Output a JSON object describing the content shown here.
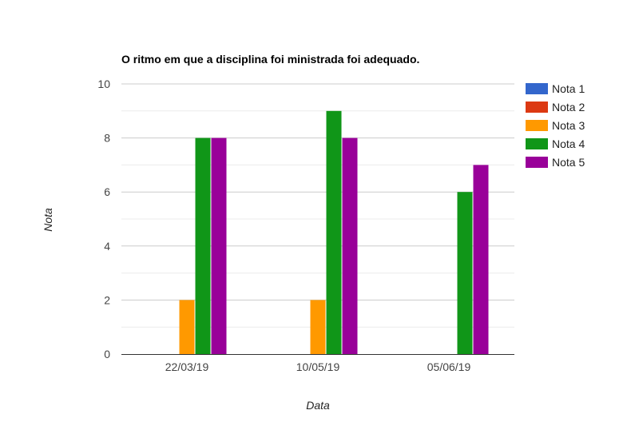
{
  "chart_data": {
    "type": "bar",
    "title": "O ritmo em que a disciplina foi ministrada foi adequado.",
    "xlabel": "Data",
    "ylabel": "Nota",
    "categories": [
      "22/03/19",
      "10/05/19",
      "05/06/19"
    ],
    "ylim": [
      0,
      10
    ],
    "yticks": [
      0,
      2,
      4,
      6,
      8,
      10
    ],
    "grid": true,
    "legend_position": "right",
    "series": [
      {
        "name": "Nota 1",
        "color": "#3366cc",
        "values": [
          0,
          0,
          0
        ]
      },
      {
        "name": "Nota 2",
        "color": "#dc3912",
        "values": [
          0,
          0,
          0
        ]
      },
      {
        "name": "Nota 3",
        "color": "#ff9900",
        "values": [
          2,
          2,
          0
        ]
      },
      {
        "name": "Nota 4",
        "color": "#109618",
        "values": [
          8,
          9,
          6
        ]
      },
      {
        "name": "Nota 5",
        "color": "#990099",
        "values": [
          8,
          8,
          7
        ]
      }
    ]
  }
}
